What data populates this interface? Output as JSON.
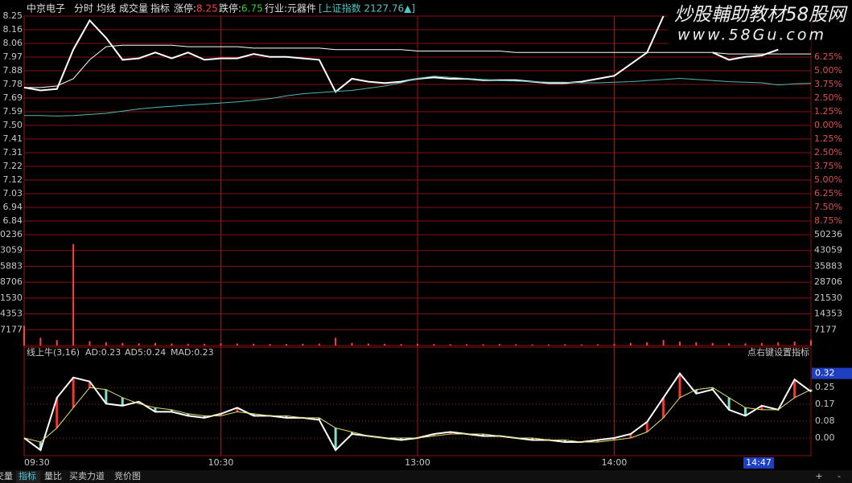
{
  "header": {
    "stock": "中京电子",
    "items": [
      "分时",
      "均线",
      "成交量",
      "指标"
    ],
    "limit_up_label": "涨停:",
    "limit_up": 8.25,
    "limit_down_label": "跌停:",
    "limit_down": 6.75,
    "industry": "行业:元器件",
    "index": "[上证指数 2127.76▲]"
  },
  "watermark": {
    "line1": "炒股輔助教材58股网",
    "line2": "www.58Gu.com"
  },
  "cursor_time": "14:47",
  "tabs": [
    "成交量",
    "指标",
    "量比",
    "买卖力道",
    "竞价图"
  ],
  "zoom": [
    "+",
    "-"
  ],
  "chart_data": [
    {
      "type": "line",
      "x": [
        0,
        5,
        10,
        15,
        20,
        25,
        30,
        35,
        40,
        45,
        50,
        55,
        60,
        65,
        70,
        75,
        80,
        85,
        90,
        95,
        100,
        105,
        110,
        115,
        120,
        125,
        130,
        135,
        140,
        145,
        150,
        155,
        160,
        165,
        170,
        175,
        180,
        185,
        190,
        195,
        200,
        205,
        210,
        215,
        220,
        225,
        230,
        235,
        240
      ],
      "xlim": [
        0,
        240
      ],
      "xticks": [
        {
          "value": 0,
          "label": "09:30"
        },
        {
          "value": 60,
          "label": "10:30"
        },
        {
          "value": 120,
          "label": "13:00"
        },
        {
          "value": 180,
          "label": "14:00"
        }
      ],
      "ylim": [
        6.75,
        8.25
      ],
      "yticks": [
        8.25,
        {
          "value": 8.15625,
          "label": "8.16"
        },
        {
          "value": 8.0625,
          "label": "8.06"
        },
        {
          "value": 7.96875,
          "label": "7.97"
        },
        {
          "value": 7.875,
          "label": "7.88"
        },
        {
          "value": 7.78125,
          "label": "7.78"
        },
        {
          "value": 7.6875,
          "label": "7.69"
        },
        {
          "value": 7.59375,
          "label": "7.59"
        },
        {
          "value": 7.5,
          "label": "7.50"
        },
        {
          "value": 7.40625,
          "label": "7.41"
        },
        {
          "value": 7.3125,
          "label": "7.31"
        },
        {
          "value": 7.21875,
          "label": "7.22"
        },
        {
          "value": 7.125,
          "label": "7.12"
        },
        {
          "value": 7.03125,
          "label": "7.03"
        },
        {
          "value": 6.9375,
          "label": "6.94"
        },
        {
          "value": 6.84375,
          "label": "6.84"
        }
      ],
      "y2lim": [
        -10,
        10
      ],
      "y2ticks": [
        {
          "value": 6.25,
          "label": "6.25%"
        },
        {
          "value": 5,
          "label": "5.00%"
        },
        {
          "value": 3.75,
          "label": "3.75%"
        },
        {
          "value": 2.5,
          "label": "2.50%"
        },
        {
          "value": 1.25,
          "label": "1.25%"
        },
        {
          "value": 0,
          "label": "0.00%"
        },
        {
          "value": -1.25,
          "label": "1.25%"
        },
        {
          "value": -2.5,
          "label": "2.50%"
        },
        {
          "value": -3.75,
          "label": "3.75%"
        },
        {
          "value": -5,
          "label": "5.00%"
        },
        {
          "value": -6.25,
          "label": "6.25%"
        },
        {
          "value": -7.5,
          "label": "7.50%"
        },
        {
          "value": -8.75,
          "label": "8.75%"
        }
      ],
      "grid": true,
      "series": [
        {
          "color": "#ffffff",
          "width": 2,
          "values": [
            7.76,
            7.74,
            7.75,
            8.02,
            8.22,
            8.1,
            7.95,
            7.96,
            8.0,
            7.96,
            8.0,
            7.95,
            7.96,
            7.96,
            7.99,
            7.97,
            7.97,
            7.96,
            7.95,
            7.73,
            7.82,
            7.8,
            7.79,
            7.8,
            7.82,
            7.83,
            7.82,
            7.82,
            7.81,
            7.81,
            7.81,
            7.8,
            7.79,
            7.79,
            7.8,
            7.82,
            7.84,
            7.92,
            8.0,
            8.25,
            null,
            null,
            8.0,
            7.95,
            7.97,
            7.98,
            8.02,
            null,
            null
          ]
        },
        {
          "color": "#ffffff",
          "width": 1,
          "values": [
            7.76,
            7.76,
            7.77,
            7.82,
            7.95,
            8.04,
            8.05,
            8.05,
            8.05,
            8.05,
            8.04,
            8.04,
            8.04,
            8.04,
            8.03,
            8.03,
            8.03,
            8.03,
            8.03,
            8.02,
            8.02,
            8.02,
            8.02,
            8.02,
            8.01,
            8.01,
            8.01,
            8.01,
            8.01,
            8.01,
            8.0,
            8.0,
            8.0,
            8.0,
            8.0,
            8.0,
            8.0,
            8.0,
            8.0,
            8.0,
            8.0,
            8.0,
            8.0,
            7.99,
            7.99,
            7.99,
            7.99,
            7.99,
            7.99
          ]
        },
        {
          "color": "#4fb8b0",
          "width": 1,
          "axis": "y2",
          "values": [
            0.9,
            0.9,
            0.85,
            0.9,
            1.0,
            1.1,
            1.3,
            1.5,
            1.65,
            1.75,
            1.85,
            1.95,
            2.05,
            2.15,
            2.3,
            2.45,
            2.7,
            2.9,
            3.0,
            3.1,
            3.2,
            3.4,
            3.6,
            3.9,
            4.3,
            4.5,
            4.4,
            4.3,
            4.2,
            4.1,
            4.05,
            4.0,
            3.95,
            3.95,
            3.9,
            3.9,
            3.95,
            4.0,
            4.1,
            4.2,
            4.3,
            4.2,
            4.1,
            4.0,
            3.95,
            3.9,
            3.7,
            3.8,
            3.85
          ]
        }
      ]
    },
    {
      "type": "bar",
      "color": "#ff4040",
      "ylim": [
        0,
        50236
      ],
      "yticks": [
        7177,
        14353,
        21530,
        28706,
        35883,
        43059,
        50236
      ],
      "values": [
        9000,
        3500,
        2500,
        46000,
        2000,
        1500,
        1200,
        1000,
        1200,
        900,
        800,
        800,
        1000,
        900,
        800,
        700,
        700,
        800,
        900,
        3500,
        1200,
        900,
        800,
        700,
        800,
        700,
        600,
        600,
        600,
        700,
        600,
        500,
        500,
        600,
        500,
        600,
        800,
        1200,
        1500,
        2500,
        1800,
        1500,
        1200,
        1000,
        1000,
        1200,
        1500,
        1800,
        2500
      ]
    },
    {
      "type": "line",
      "title": "线上牛(3,16)",
      "readouts": [
        "AD:0.23",
        "AD5:0.24",
        "MAD:0.23"
      ],
      "note": "点右键设置指标",
      "ylim": [
        -0.0875,
        0.45
      ],
      "yticks": [
        {
          "value": 0.25,
          "label": "0.25"
        },
        {
          "value": 0.1667,
          "label": "0.17"
        },
        {
          "value": 0.0833,
          "label": "0.08"
        },
        {
          "value": 0,
          "label": "0.00"
        }
      ],
      "current": 0.32,
      "hatch_colors": [
        "#ff3030",
        "#80e0c8"
      ],
      "series": [
        {
          "color": "#ffffff",
          "width": 2,
          "values": [
            0.0,
            -0.06,
            0.2,
            0.3,
            0.28,
            0.17,
            0.16,
            0.18,
            0.13,
            0.13,
            0.11,
            0.1,
            0.12,
            0.15,
            0.11,
            0.11,
            0.1,
            0.1,
            0.09,
            -0.06,
            0.02,
            0.01,
            0.0,
            -0.01,
            0.0,
            0.02,
            0.03,
            0.02,
            0.01,
            0.01,
            0.0,
            -0.01,
            -0.01,
            -0.02,
            -0.02,
            -0.01,
            0.0,
            0.02,
            0.08,
            0.2,
            0.32,
            0.22,
            0.24,
            0.14,
            0.11,
            0.16,
            0.14,
            0.29,
            0.23
          ]
        },
        {
          "color": "#e0e070",
          "width": 1,
          "values": [
            0.0,
            -0.02,
            0.05,
            0.15,
            0.25,
            0.24,
            0.2,
            0.17,
            0.15,
            0.14,
            0.12,
            0.11,
            0.11,
            0.13,
            0.12,
            0.11,
            0.11,
            0.1,
            0.1,
            0.05,
            0.03,
            0.01,
            0.0,
            0.0,
            0.0,
            0.01,
            0.02,
            0.02,
            0.02,
            0.01,
            0.0,
            0.0,
            -0.01,
            -0.01,
            -0.02,
            -0.02,
            -0.01,
            0.0,
            0.03,
            0.1,
            0.2,
            0.24,
            0.25,
            0.2,
            0.15,
            0.14,
            0.14,
            0.2,
            0.24
          ]
        }
      ]
    }
  ]
}
